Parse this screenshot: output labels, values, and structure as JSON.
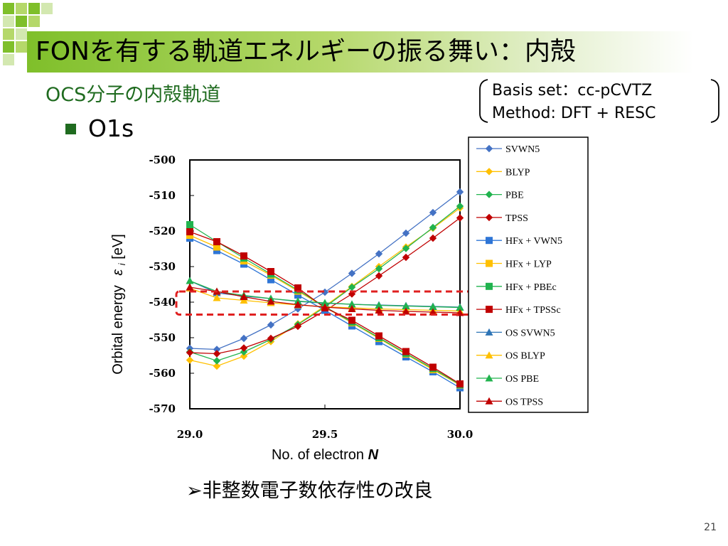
{
  "title": "FONを有する軌道エネルギーの振る舞い：内殻",
  "subtitle": "OCS分子の内殻軌道",
  "bullet": "O1s",
  "method": {
    "basis": "Basis set：cc-pCVTZ",
    "method": "Method: DFT + RESC"
  },
  "conclusion": "➢非整数電子数依存性の改良",
  "page_number": "21",
  "colors": {
    "title_green": "#7fbf2a",
    "subtitle_green": "#1f6b1f",
    "highlight_box": "#e02020"
  },
  "chart_data": {
    "type": "line",
    "xlabel_text": "No. of electron",
    "xlabel_var": "N",
    "ylabel_text": "Orbital energy",
    "ylabel_var": "ε",
    "ylabel_sub": "i",
    "ylabel_unit": "[eV]",
    "xlim": [
      29.0,
      30.0
    ],
    "ylim": [
      -570,
      -500
    ],
    "xticks": [
      "29.0",
      "29.5",
      "30.0"
    ],
    "yticks": [
      "-500",
      "-510",
      "-520",
      "-530",
      "-540",
      "-550",
      "-560",
      "-570"
    ],
    "x": [
      29.0,
      29.1,
      29.2,
      29.3,
      29.4,
      29.5,
      29.6,
      29.7,
      29.8,
      29.9,
      30.0
    ],
    "series": [
      {
        "name": "SVWN5",
        "color": "#4472c4",
        "marker": "diamond",
        "values": [
          -553.0,
          -553.3,
          -550.2,
          -546.4,
          -541.9,
          -537.2,
          -531.9,
          -526.4,
          -520.6,
          -514.8,
          -509.0
        ]
      },
      {
        "name": "BLYP",
        "color": "#ffc000",
        "marker": "diamond",
        "values": [
          -556.3,
          -558.0,
          -555.2,
          -551.1,
          -546.1,
          -541.1,
          -535.6,
          -530.0,
          -524.5,
          -519.2,
          -513.5
        ]
      },
      {
        "name": "PBE",
        "color": "#21b34e",
        "marker": "diamond",
        "values": [
          -554.0,
          -556.5,
          -554.0,
          -550.5,
          -546.3,
          -541.4,
          -535.8,
          -530.6,
          -524.9,
          -519.0,
          -513.0
        ]
      },
      {
        "name": "TPSS",
        "color": "#c00000",
        "marker": "diamond",
        "values": [
          -554.2,
          -554.5,
          -552.9,
          -550.2,
          -546.8,
          -542.4,
          -537.7,
          -532.6,
          -527.4,
          -522.0,
          -516.3
        ]
      },
      {
        "name": "HFx + VWN5",
        "color": "#2e75d6",
        "marker": "square",
        "values": [
          -522.0,
          -525.5,
          -529.3,
          -533.7,
          -538.0,
          -542.3,
          -546.7,
          -551.1,
          -555.4,
          -559.6,
          -564.1
        ]
      },
      {
        "name": "HFx + LYP",
        "color": "#ffc000",
        "marker": "square",
        "values": [
          -521.2,
          -524.5,
          -528.4,
          -532.4,
          -536.9,
          -541.4,
          -545.8,
          -550.2,
          -554.6,
          -559.0,
          -563.3
        ]
      },
      {
        "name": "HFx + PBEc",
        "color": "#21b34e",
        "marker": "square",
        "values": [
          -518.2,
          -523.0,
          -527.6,
          -532.1,
          -536.6,
          -541.3,
          -545.6,
          -550.0,
          -554.4,
          -558.7,
          -563.2
        ]
      },
      {
        "name": "HFx + TPSSc",
        "color": "#c00000",
        "marker": "square",
        "values": [
          -520.2,
          -523.0,
          -527.0,
          -531.4,
          -536.0,
          -541.6,
          -545.1,
          -549.5,
          -553.9,
          -558.3,
          -563.0
        ]
      },
      {
        "name": "OS SVWN5",
        "color": "#2e75b6",
        "marker": "triangle",
        "values": [
          -534.0,
          -537.4,
          -538.3,
          -539.0,
          -539.8,
          -540.3,
          -540.6,
          -540.8,
          -541.0,
          -541.2,
          -541.4
        ]
      },
      {
        "name": "OS BLYP",
        "color": "#ffc000",
        "marker": "triangle",
        "values": [
          -536.1,
          -538.8,
          -539.5,
          -540.2,
          -540.8,
          -541.3,
          -541.6,
          -541.9,
          -542.1,
          -542.3,
          -542.5
        ]
      },
      {
        "name": "OS PBE",
        "color": "#21b34e",
        "marker": "triangle",
        "values": [
          -534.0,
          -537.0,
          -538.1,
          -539.0,
          -539.7,
          -540.2,
          -540.6,
          -540.9,
          -541.1,
          -541.3,
          -541.5
        ]
      },
      {
        "name": "OS TPSS",
        "color": "#c00000",
        "marker": "triangle",
        "values": [
          -535.8,
          -537.0,
          -538.5,
          -539.8,
          -540.7,
          -541.4,
          -541.9,
          -542.3,
          -542.6,
          -542.8,
          -543.0
        ]
      }
    ],
    "highlight": {
      "x_range": [
        28.95,
        30.15
      ],
      "y_range": [
        -537,
        -543.5
      ],
      "style": "dashed",
      "color": "#e02020"
    },
    "legend_position": "right",
    "grid": false
  }
}
